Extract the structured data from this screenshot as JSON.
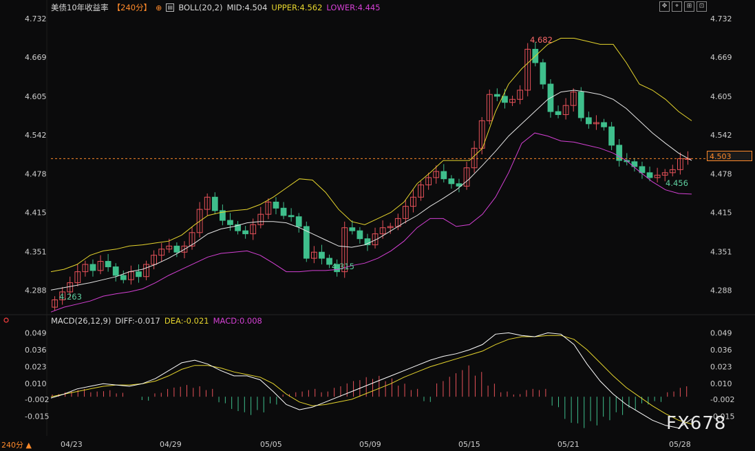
{
  "legend": {
    "symbol": "美债10年收益率",
    "period": "【240分】",
    "clock_icon": "clock-icon",
    "boll_icon": "boll-indicator-icon",
    "boll": "BOLL(20,2)",
    "mid": "MID:4.504",
    "upper": "UPPER:4.562",
    "lower": "LOWER:4.445"
  },
  "macd_legend": {
    "indicator": "MACD(26,12,9)",
    "diff": "DIFF:-0.017",
    "dea": "DEA:-0.021",
    "macd": "MACD:0.008"
  },
  "toolbar": [
    "move-icon",
    "crosshair-icon",
    "zoom-icon",
    "settings-icon"
  ],
  "price_axis": [
    "4.732",
    "4.669",
    "4.605",
    "4.542",
    "4.478",
    "4.415",
    "4.351",
    "4.288"
  ],
  "current_price": "4.503",
  "macd_axis": [
    "0.049",
    "0.036",
    "0.023",
    "0.010",
    "-0.002",
    "-0.015"
  ],
  "x_axis": [
    "04/23",
    "04/29",
    "05/05",
    "05/09",
    "05/15",
    "05/21",
    "05/28"
  ],
  "period_selector": "240分 ▲",
  "annotations": {
    "low1": "4.263",
    "high": "4.682",
    "low_mid": "4.315",
    "low_end": "4.456"
  },
  "watermark": "FX678",
  "colors": {
    "up": "#e8525a",
    "down": "#3fbf8c",
    "upper": "#e6d52d",
    "mid": "#e6e6e6",
    "lower": "#d440d4",
    "dea": "#e6d52d",
    "diff": "#ffffff",
    "price_line": "#ff8a2a"
  },
  "chart_data": {
    "type": "candlestick",
    "ylim": [
      4.25,
      4.74
    ],
    "price_series": [
      4.272,
      4.285,
      4.3,
      4.318,
      4.33,
      4.32,
      4.335,
      4.326,
      4.312,
      4.305,
      4.318,
      4.31,
      4.33,
      4.345,
      4.355,
      4.36,
      4.35,
      4.36,
      4.382,
      4.42,
      4.44,
      4.418,
      4.402,
      4.395,
      4.385,
      4.38,
      4.395,
      4.412,
      4.432,
      4.422,
      4.41,
      4.408,
      4.392,
      4.34,
      4.35,
      4.34,
      4.33,
      4.318,
      4.39,
      4.385,
      4.372,
      4.362,
      4.38,
      4.39,
      4.392,
      4.405,
      4.425,
      4.44,
      4.46,
      4.472,
      4.482,
      4.47,
      4.462,
      4.458,
      4.488,
      4.52,
      4.565,
      4.608,
      4.605,
      4.595,
      4.6,
      4.615,
      4.682,
      4.66,
      4.625,
      4.58,
      4.575,
      4.59,
      4.612,
      4.57,
      4.56,
      4.562,
      4.555,
      4.525,
      4.5,
      4.498,
      4.49,
      4.48,
      4.472,
      4.476,
      4.48,
      4.485,
      4.503,
      4.503
    ],
    "boll_upper": [
      4.318,
      4.322,
      4.33,
      4.345,
      4.352,
      4.355,
      4.36,
      4.362,
      4.365,
      4.368,
      4.378,
      4.395,
      4.41,
      4.415,
      4.418,
      4.42,
      4.428,
      4.44,
      4.455,
      4.47,
      4.468,
      4.448,
      4.42,
      4.4,
      4.395,
      4.405,
      4.415,
      4.432,
      4.462,
      4.48,
      4.5,
      4.5,
      4.5,
      4.52,
      4.58,
      4.625,
      4.65,
      4.67,
      4.69,
      4.7,
      4.7,
      4.695,
      4.69,
      4.69,
      4.66,
      4.625,
      4.615,
      4.6,
      4.58,
      4.565
    ],
    "boll_mid": [
      4.288,
      4.292,
      4.296,
      4.3,
      4.305,
      4.31,
      4.318,
      4.322,
      4.33,
      4.34,
      4.352,
      4.365,
      4.38,
      4.388,
      4.392,
      4.398,
      4.4,
      4.4,
      4.398,
      4.39,
      4.38,
      4.37,
      4.36,
      4.358,
      4.362,
      4.372,
      4.385,
      4.398,
      4.41,
      4.425,
      4.438,
      4.452,
      4.47,
      4.492,
      4.515,
      4.54,
      4.56,
      4.58,
      4.6,
      4.612,
      4.615,
      4.612,
      4.608,
      4.6,
      4.585,
      4.565,
      4.545,
      4.528,
      4.512,
      4.5
    ],
    "boll_lower": [
      4.252,
      4.26,
      4.265,
      4.27,
      4.278,
      4.282,
      4.285,
      4.29,
      4.3,
      4.312,
      4.322,
      4.332,
      4.342,
      4.348,
      4.35,
      4.352,
      4.345,
      4.332,
      4.318,
      4.318,
      4.32,
      4.32,
      4.322,
      4.328,
      4.332,
      4.34,
      4.352,
      4.368,
      4.39,
      4.405,
      4.405,
      4.392,
      4.395,
      4.412,
      4.44,
      4.48,
      4.528,
      4.545,
      4.54,
      4.532,
      4.53,
      4.525,
      4.52,
      4.512,
      4.5,
      4.482,
      4.465,
      4.452,
      4.446,
      4.445
    ],
    "macd_ylim": [
      -0.03,
      0.055
    ],
    "diff": [
      -0.001,
      0.002,
      0.006,
      0.008,
      0.01,
      0.009,
      0.008,
      0.01,
      0.014,
      0.02,
      0.026,
      0.028,
      0.025,
      0.02,
      0.016,
      0.016,
      0.013,
      0.004,
      -0.006,
      -0.01,
      -0.008,
      -0.004,
      0.0,
      0.004,
      0.008,
      0.012,
      0.016,
      0.02,
      0.024,
      0.028,
      0.031,
      0.033,
      0.036,
      0.04,
      0.048,
      0.049,
      0.047,
      0.046,
      0.049,
      0.048,
      0.04,
      0.025,
      0.012,
      0.002,
      -0.006,
      -0.012,
      -0.018,
      -0.022,
      -0.024,
      -0.017
    ],
    "dea": [
      0.0,
      0.002,
      0.004,
      0.006,
      0.008,
      0.009,
      0.009,
      0.01,
      0.012,
      0.016,
      0.021,
      0.024,
      0.024,
      0.022,
      0.019,
      0.017,
      0.015,
      0.01,
      0.002,
      -0.004,
      -0.007,
      -0.006,
      -0.004,
      -0.002,
      0.002,
      0.006,
      0.01,
      0.015,
      0.019,
      0.023,
      0.026,
      0.029,
      0.032,
      0.035,
      0.04,
      0.044,
      0.046,
      0.046,
      0.047,
      0.047,
      0.044,
      0.036,
      0.026,
      0.016,
      0.007,
      0.0,
      -0.007,
      -0.013,
      -0.018,
      -0.021
    ],
    "macd_hist": [
      0.002,
      0.004,
      0.006,
      0.004,
      0.005,
      0.003,
      0.0,
      -0.003,
      0.003,
      0.007,
      0.009,
      0.008,
      0.006,
      -0.005,
      -0.011,
      -0.014,
      -0.012,
      -0.006,
      0.002,
      0.004,
      0.006,
      0.004,
      0.008,
      0.012,
      0.015,
      0.016,
      0.014,
      0.01,
      0.006,
      -0.004,
      0.012,
      0.018,
      0.024,
      0.019,
      0.01,
      0.004,
      0.002,
      0.006,
      0.006,
      -0.008,
      -0.02,
      -0.024,
      -0.022,
      -0.018,
      -0.014,
      -0.01,
      -0.006,
      -0.004,
      0.004,
      0.008
    ]
  }
}
